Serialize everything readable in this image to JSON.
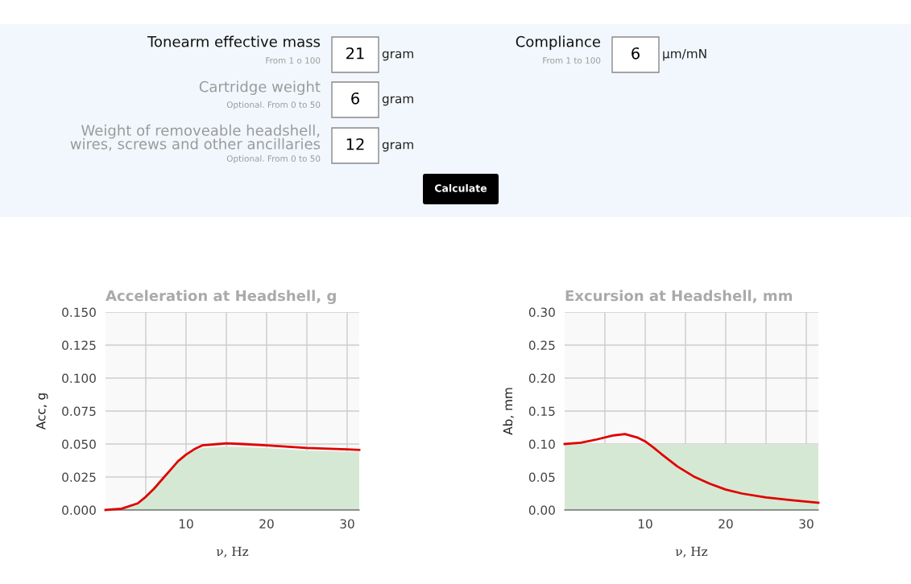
{
  "chart_data": [
    {
      "type": "other",
      "annotations": [
        "Tonearm effective mass",
        "From 1 o 100",
        "21",
        "gram",
        "Cartridge weight",
        "Optional. From 0 to 50",
        "6",
        "gram",
        "Weight of removeable headshell,\nwires, screws and other ancillaries",
        "Optional. From 0 to 50",
        "12",
        "gram",
        "Compliance",
        "From 1 to 100",
        "6",
        "μm/mN",
        "Calculate"
      ]
    },
    {
      "type": "line",
      "title": "Acceleration at Headshell, g",
      "xlabel": "ν, Hz",
      "ylabel": "Acc, g",
      "xlim": [
        0,
        31.5
      ],
      "ylim": [
        0,
        0.15
      ],
      "xticks": [
        {
          "value": 5,
          "label": null
        },
        10,
        {
          "value": 15,
          "label": null
        },
        20,
        {
          "value": 25,
          "label": null
        },
        30
      ],
      "yticks": [
        {
          "value": 0,
          "label": "0.000"
        },
        {
          "value": 0.025,
          "label": "0.025"
        },
        {
          "value": 0.05,
          "label": "0.050"
        },
        {
          "value": 0.075,
          "label": "0.075"
        },
        {
          "value": 0.1,
          "label": "0.100"
        },
        {
          "value": 0.125,
          "label": "0.125"
        },
        {
          "value": 0.15,
          "label": "0.150"
        }
      ],
      "grid": true,
      "series": [
        {
          "type": "area",
          "color": "#d5e8d4",
          "x": [
            0,
            2,
            4,
            5,
            6,
            7,
            8,
            9,
            10,
            11,
            12,
            15,
            20,
            25,
            31.5
          ],
          "values": [
            0,
            0.001,
            0.005,
            0.01,
            0.016,
            0.023,
            0.03,
            0.037,
            0.042,
            0.045,
            0.047,
            0.048,
            0.047,
            0.045,
            0.044
          ]
        },
        {
          "type": "line",
          "color": "#e00000",
          "x": [
            0,
            2,
            4,
            5,
            6,
            7,
            8,
            9,
            10,
            11,
            12,
            14,
            15,
            17,
            20,
            25,
            30,
            31.5
          ],
          "values": [
            0,
            0.001,
            0.005,
            0.01,
            0.016,
            0.023,
            0.03,
            0.037,
            0.042,
            0.046,
            0.049,
            0.05,
            0.0505,
            0.05,
            0.049,
            0.047,
            0.046,
            0.0455
          ]
        }
      ]
    },
    {
      "type": "line",
      "title": "Excursion at Headshell, mm",
      "xlabel": "ν, Hz",
      "ylabel": "Ab, mm",
      "xlim": [
        0,
        31.5
      ],
      "ylim": [
        0,
        0.3
      ],
      "xticks": [
        {
          "value": 5,
          "label": null
        },
        10,
        {
          "value": 15,
          "label": null
        },
        20,
        {
          "value": 25,
          "label": null
        },
        30
      ],
      "yticks": [
        {
          "value": 0,
          "label": "0.00"
        },
        {
          "value": 0.05,
          "label": "0.05"
        },
        {
          "value": 0.1,
          "label": "0.10"
        },
        {
          "value": 0.15,
          "label": "0.15"
        },
        {
          "value": 0.2,
          "label": "0.20"
        },
        {
          "value": 0.25,
          "label": "0.25"
        },
        {
          "value": 0.3,
          "label": "0.30"
        }
      ],
      "grid": true,
      "series": [
        {
          "type": "area",
          "color": "#d5e8d4",
          "x": [
            0,
            31.5
          ],
          "values": [
            0.1,
            0.1
          ]
        },
        {
          "type": "line",
          "color": "#e00000",
          "x": [
            0,
            2,
            4,
            6,
            7.5,
            9,
            10,
            11,
            12,
            14,
            16,
            18,
            20,
            22,
            25,
            28,
            31.5
          ],
          "values": [
            0.1,
            0.102,
            0.107,
            0.113,
            0.115,
            0.11,
            0.104,
            0.095,
            0.085,
            0.066,
            0.051,
            0.04,
            0.031,
            0.025,
            0.019,
            0.015,
            0.011
          ]
        }
      ]
    }
  ]
}
